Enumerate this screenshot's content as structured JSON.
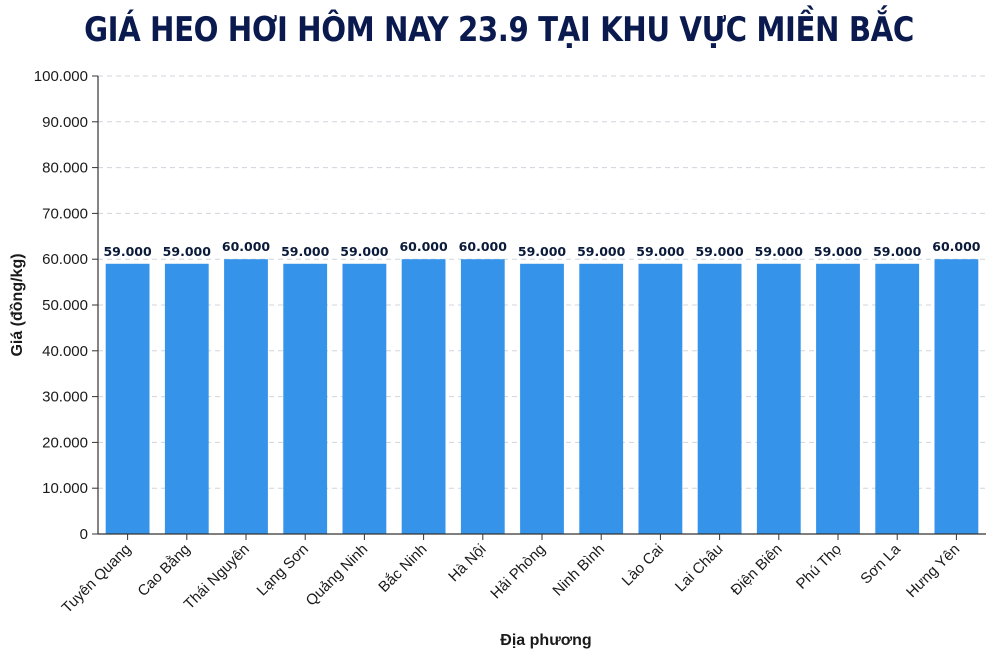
{
  "chart_data": {
    "type": "bar",
    "title": "GIÁ HEO HƠI HÔM NAY 23.9 TẠI KHU VỰC MIỀN BẮC",
    "xlabel": "Địa phương",
    "ylabel": "Giá (đồng/kg)",
    "ylim": [
      0,
      100000
    ],
    "yticks": [
      0,
      10000,
      20000,
      30000,
      40000,
      50000,
      60000,
      70000,
      80000,
      90000,
      100000
    ],
    "ytick_labels": [
      "0",
      "10.000",
      "20.000",
      "30.000",
      "40.000",
      "50.000",
      "60.000",
      "70.000",
      "80.000",
      "90.000",
      "100.000"
    ],
    "grid": true,
    "categories": [
      "Tuyên Quang",
      "Cao Bằng",
      "Thái Nguyên",
      "Lạng Sơn",
      "Quảng Ninh",
      "Bắc Ninh",
      "Hà Nội",
      "Hải Phòng",
      "Ninh Bình",
      "Lào Cai",
      "Lai Châu",
      "Điện Biên",
      "Phú Thọ",
      "Sơn La",
      "Hưng Yên"
    ],
    "values": [
      59000,
      59000,
      60000,
      59000,
      59000,
      60000,
      60000,
      59000,
      59000,
      59000,
      59000,
      59000,
      59000,
      59000,
      60000
    ],
    "value_labels": [
      "59.000",
      "59.000",
      "60.000",
      "59.000",
      "59.000",
      "60.000",
      "60.000",
      "59.000",
      "59.000",
      "59.000",
      "59.000",
      "59.000",
      "59.000",
      "59.000",
      "60.000"
    ],
    "colors": {
      "bar": "#3594ea",
      "title": "#0a1a4f",
      "grid": "#d0d5dc",
      "axis": "#333333"
    }
  }
}
